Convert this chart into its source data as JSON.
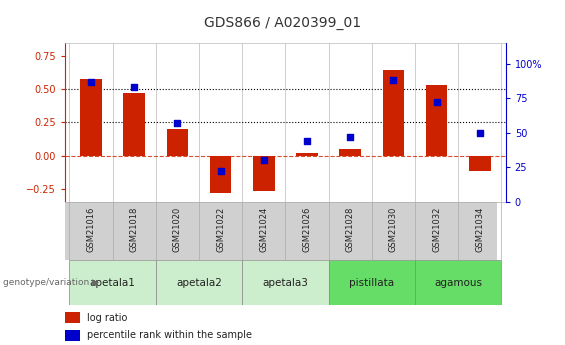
{
  "title": "GDS866 / A020399_01",
  "samples": [
    "GSM21016",
    "GSM21018",
    "GSM21020",
    "GSM21022",
    "GSM21024",
    "GSM21026",
    "GSM21028",
    "GSM21030",
    "GSM21032",
    "GSM21034"
  ],
  "log_ratio": [
    0.58,
    0.47,
    0.2,
    -0.28,
    -0.27,
    0.02,
    0.05,
    0.65,
    0.53,
    -0.12
  ],
  "percentile_rank": [
    87,
    83,
    57,
    22,
    30,
    44,
    47,
    88,
    72,
    50
  ],
  "groups": [
    {
      "label": "apetala1",
      "span": [
        0,
        2
      ],
      "light": true
    },
    {
      "label": "apetala2",
      "span": [
        2,
        4
      ],
      "light": true
    },
    {
      "label": "apetala3",
      "span": [
        4,
        6
      ],
      "light": true
    },
    {
      "label": "pistillata",
      "span": [
        6,
        8
      ],
      "light": false
    },
    {
      "label": "agamous",
      "span": [
        8,
        10
      ],
      "light": false
    }
  ],
  "bar_color": "#cc2200",
  "dot_color": "#0000cc",
  "left_ylim": [
    -0.35,
    0.85
  ],
  "left_yticks": [
    -0.25,
    0.0,
    0.25,
    0.5,
    0.75
  ],
  "right_ylim": [
    0,
    115
  ],
  "right_yticks": [
    0,
    25,
    50,
    75,
    100
  ],
  "hlines": [
    0.25,
    0.5
  ],
  "zero_line_color": "#cc2200",
  "dotted_line_color": "#000000",
  "background_color": "#ffffff",
  "sample_row_color": "#d0d0d0",
  "group_light_color": "#cceecc",
  "group_dark_color": "#66dd66",
  "genotype_label": "genotype/variation",
  "legend_log_ratio": "log ratio",
  "legend_percentile": "percentile rank within the sample",
  "title_fontsize": 10,
  "tick_fontsize": 7,
  "label_fontsize": 7.5
}
